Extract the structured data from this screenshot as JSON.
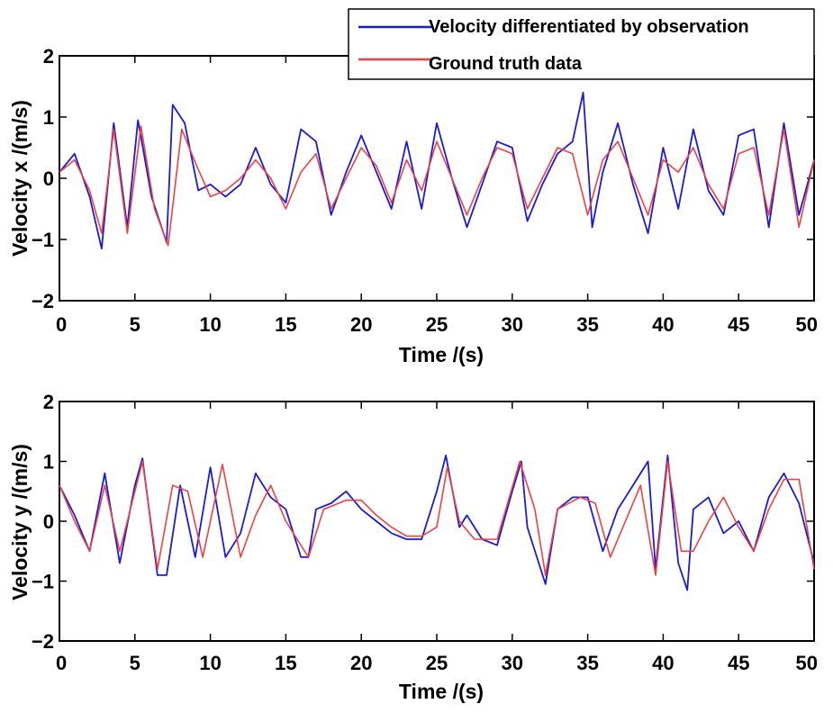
{
  "colors": {
    "observation": "#1a1adb",
    "ground_truth": "#f04040",
    "axis": "#000000",
    "background": "#ffffff"
  },
  "legend": {
    "observation_label": "Velocity differentiated by observation",
    "ground_truth_label": "Ground truth data"
  },
  "chart_data": [
    {
      "type": "line",
      "title": "",
      "xlabel": "Time /(s)",
      "ylabel": "Velocity x /(m/s)",
      "xlim": [
        0,
        50
      ],
      "ylim": [
        -2,
        2
      ],
      "xticks": [
        0,
        5,
        10,
        15,
        20,
        25,
        30,
        35,
        40,
        45,
        50
      ],
      "yticks": [
        -2,
        -1,
        0,
        1,
        2
      ],
      "ytick_labels": [
        "−2",
        "−1",
        "0",
        "1",
        "2"
      ],
      "grid": false,
      "legend_position": "top-right",
      "series": [
        {
          "name": "Velocity differentiated by observation",
          "color": "#1a1adb",
          "x": [
            0,
            1,
            2,
            2.8,
            3.6,
            4.5,
            5.2,
            6.1,
            7.1,
            7.5,
            8.3,
            9.2,
            10,
            11,
            12,
            13,
            14,
            15,
            16,
            17,
            18,
            19,
            20,
            21,
            22,
            23,
            24,
            25,
            26,
            27,
            28,
            29,
            30,
            31,
            32,
            33,
            34,
            34.7,
            35.3,
            36,
            37,
            38,
            39,
            40,
            41,
            42,
            43,
            44,
            45,
            46,
            47,
            48,
            49,
            50
          ],
          "y": [
            0.1,
            0.4,
            -0.3,
            -1.15,
            0.9,
            -0.8,
            0.95,
            -0.3,
            -1.05,
            1.2,
            0.9,
            -0.2,
            -0.1,
            -0.3,
            -0.1,
            0.5,
            -0.1,
            -0.4,
            0.8,
            0.6,
            -0.6,
            0.1,
            0.7,
            0.1,
            -0.5,
            0.6,
            -0.5,
            0.9,
            0.0,
            -0.8,
            -0.1,
            0.6,
            0.5,
            -0.7,
            -0.1,
            0.4,
            0.6,
            1.4,
            -0.8,
            0.1,
            0.9,
            -0.1,
            -0.9,
            0.5,
            -0.5,
            0.8,
            -0.2,
            -0.6,
            0.7,
            0.8,
            -0.8,
            0.9,
            -0.6,
            0.3
          ]
        },
        {
          "name": "Ground truth data",
          "color": "#f04040",
          "x": [
            0,
            1,
            2,
            2.8,
            3.6,
            4.5,
            5.4,
            6.3,
            7.2,
            8.1,
            9.1,
            10,
            11,
            12,
            13,
            14,
            15,
            16,
            17,
            18,
            19,
            20,
            21,
            22,
            23,
            24,
            25,
            26,
            27,
            28,
            29,
            30,
            31,
            32,
            33,
            34,
            35,
            36,
            37,
            38,
            39,
            40,
            41,
            42,
            43,
            44,
            45,
            46,
            47,
            48,
            49,
            50
          ],
          "y": [
            0.1,
            0.3,
            -0.2,
            -0.9,
            0.8,
            -0.9,
            0.85,
            -0.5,
            -1.1,
            0.8,
            0.2,
            -0.3,
            -0.2,
            0.0,
            0.3,
            0.0,
            -0.5,
            0.1,
            0.4,
            -0.5,
            0.0,
            0.5,
            0.2,
            -0.4,
            0.3,
            -0.2,
            0.6,
            0.0,
            -0.6,
            0.0,
            0.5,
            0.4,
            -0.5,
            0.0,
            0.5,
            0.4,
            -0.6,
            0.3,
            0.6,
            0.0,
            -0.6,
            0.3,
            0.1,
            0.5,
            -0.1,
            -0.5,
            0.4,
            0.5,
            -0.6,
            0.8,
            -0.8,
            0.3
          ]
        }
      ]
    },
    {
      "type": "line",
      "title": "",
      "xlabel": "Time /(s)",
      "ylabel": "Velocity y /(m/s)",
      "xlim": [
        0,
        50
      ],
      "ylim": [
        -2,
        2
      ],
      "xticks": [
        0,
        5,
        10,
        15,
        20,
        25,
        30,
        35,
        40,
        45,
        50
      ],
      "yticks": [
        -2,
        -1,
        0,
        1,
        2
      ],
      "ytick_labels": [
        "−2",
        "−1",
        "0",
        "1",
        "2"
      ],
      "grid": false,
      "legend_position": "none",
      "series": [
        {
          "name": "Velocity differentiated by observation",
          "color": "#1a1adb",
          "x": [
            0,
            1,
            2,
            3,
            4,
            5,
            5.5,
            6.5,
            7.1,
            8,
            9,
            10,
            11,
            12,
            13,
            14,
            15,
            16,
            16.5,
            17,
            18,
            19,
            20,
            21,
            22,
            23,
            24,
            25,
            25.6,
            26.5,
            27,
            28,
            29,
            30,
            30.6,
            31,
            32.2,
            33,
            34,
            35,
            36,
            37,
            38,
            39,
            39.5,
            40.3,
            41,
            41.6,
            42,
            43,
            44,
            45,
            46,
            47,
            48,
            49,
            50
          ],
          "y": [
            0.6,
            0.1,
            -0.5,
            0.8,
            -0.7,
            0.6,
            1.05,
            -0.9,
            -0.9,
            0.6,
            -0.6,
            0.9,
            -0.6,
            -0.2,
            0.8,
            0.4,
            0.2,
            -0.6,
            -0.6,
            0.2,
            0.3,
            0.5,
            0.2,
            0.0,
            -0.2,
            -0.3,
            -0.3,
            0.5,
            1.1,
            -0.1,
            0.1,
            -0.3,
            -0.4,
            0.5,
            1.0,
            -0.1,
            -1.05,
            0.2,
            0.4,
            0.4,
            -0.5,
            0.2,
            0.6,
            1.0,
            -0.8,
            1.1,
            -0.7,
            -1.15,
            0.2,
            0.4,
            -0.2,
            0.0,
            -0.5,
            0.4,
            0.8,
            0.3,
            -0.7
          ]
        },
        {
          "name": "Ground truth data",
          "color": "#f04040",
          "x": [
            0,
            1,
            2,
            3,
            4,
            5,
            5.5,
            6.5,
            7.5,
            8.5,
            9.5,
            10.8,
            12,
            13,
            14,
            15,
            16.5,
            17.5,
            19,
            20,
            21,
            22,
            23,
            24,
            25,
            25.7,
            26.5,
            27.5,
            29,
            30.5,
            31.5,
            32.2,
            33,
            34.5,
            35.5,
            36.5,
            37.5,
            38.5,
            39.5,
            40.3,
            41.2,
            42,
            43,
            44,
            45,
            46,
            47,
            48,
            49,
            50
          ],
          "y": [
            0.6,
            0.0,
            -0.5,
            0.6,
            -0.5,
            0.5,
            1.0,
            -0.8,
            0.6,
            0.5,
            -0.6,
            0.95,
            -0.6,
            0.1,
            0.6,
            0.0,
            -0.6,
            0.2,
            0.35,
            0.35,
            0.1,
            -0.1,
            -0.25,
            -0.25,
            -0.1,
            0.9,
            0.0,
            -0.3,
            -0.3,
            1.0,
            0.2,
            -0.9,
            0.2,
            0.4,
            0.3,
            -0.6,
            0.0,
            0.6,
            -0.9,
            1.0,
            -0.5,
            -0.5,
            0.0,
            0.4,
            -0.1,
            -0.5,
            0.2,
            0.7,
            0.7,
            -0.8
          ]
        }
      ]
    }
  ]
}
